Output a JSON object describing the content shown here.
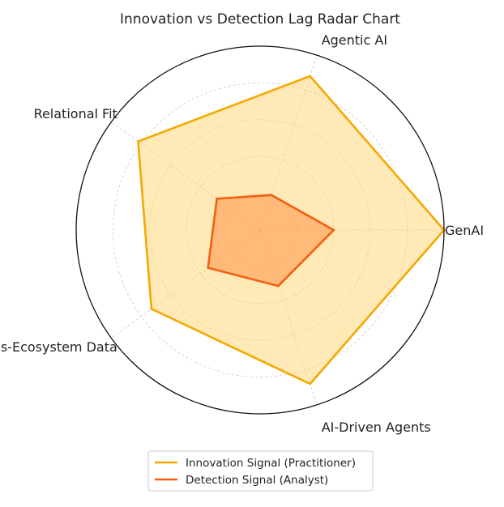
{
  "chart_data": {
    "type": "radar",
    "title": "Innovation vs Detection Lag Radar Chart",
    "axes": [
      "GenAI",
      "Agentic AI",
      "Relational Fit",
      "Cross-Ecosystem Data",
      "AI-Driven Agents"
    ],
    "rlim": [
      0,
      10
    ],
    "rgrid": [
      2,
      4,
      6,
      8,
      10
    ],
    "grid": true,
    "legend_position": "bottom-center",
    "series": [
      {
        "name": "Innovation Signal (Practitioner)",
        "values": [
          10,
          8.8,
          8.2,
          7.3,
          8.8
        ],
        "color": "#f5a800",
        "fill": "#ffd470"
      },
      {
        "name": "Detection Signal (Analyst)",
        "values": [
          4,
          2,
          2.9,
          3.5,
          3.2
        ],
        "color": "#f25f0f",
        "fill": "#ff9a50"
      }
    ]
  }
}
